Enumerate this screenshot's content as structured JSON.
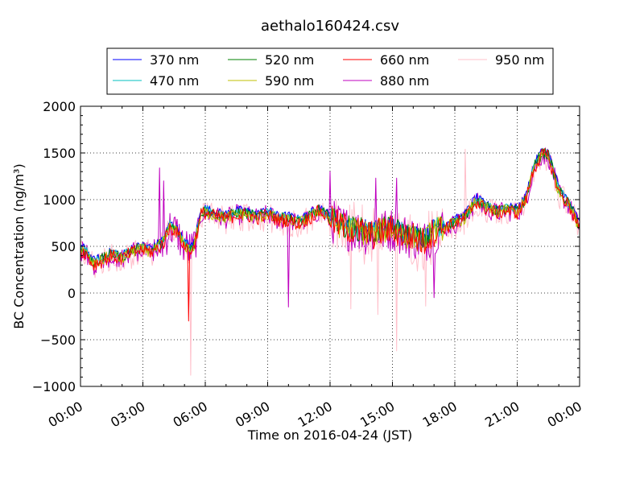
{
  "chart_data": {
    "type": "line",
    "title": "aethalo160424.csv",
    "xlabel": "Time on 2016-04-24 (JST)",
    "ylabel": "BC Concentration (ng/m³)",
    "ylim": [
      -1000,
      2000
    ],
    "yticks": [
      -1000,
      -500,
      0,
      500,
      1000,
      1500,
      2000
    ],
    "ytick_labels": [
      "−1000",
      "−500",
      "0",
      "500",
      "1000",
      "1500",
      "2000"
    ],
    "xlim_hours": [
      0,
      24
    ],
    "xticks_hours": [
      0,
      3,
      6,
      9,
      12,
      15,
      18,
      21,
      24
    ],
    "xtick_labels": [
      "00:00",
      "03:00",
      "06:00",
      "09:00",
      "12:00",
      "15:00",
      "18:00",
      "21:00",
      "00:00"
    ],
    "grid": true,
    "legend_position": "top-center",
    "series": [
      {
        "name": "370 nm",
        "color": "#0000ff"
      },
      {
        "name": "470 nm",
        "color": "#00bfbf"
      },
      {
        "name": "520 nm",
        "color": "#008000"
      },
      {
        "name": "590 nm",
        "color": "#bfbf00"
      },
      {
        "name": "660 nm",
        "color": "#ff0000"
      },
      {
        "name": "880 nm",
        "color": "#bf00bf"
      },
      {
        "name": "950 nm",
        "color": "#ffc0cb"
      }
    ],
    "profile": [
      [
        0.0,
        480
      ],
      [
        0.3,
        430
      ],
      [
        0.6,
        320
      ],
      [
        1.0,
        360
      ],
      [
        1.5,
        420
      ],
      [
        2.0,
        380
      ],
      [
        2.5,
        460
      ],
      [
        3.0,
        480
      ],
      [
        3.5,
        460
      ],
      [
        4.0,
        560
      ],
      [
        4.3,
        720
      ],
      [
        4.6,
        680
      ],
      [
        5.0,
        520
      ],
      [
        5.4,
        470
      ],
      [
        5.8,
        860
      ],
      [
        6.0,
        880
      ],
      [
        6.5,
        840
      ],
      [
        7.0,
        820
      ],
      [
        7.5,
        860
      ],
      [
        8.0,
        850
      ],
      [
        8.5,
        820
      ],
      [
        9.0,
        860
      ],
      [
        9.5,
        800
      ],
      [
        10.0,
        800
      ],
      [
        10.5,
        760
      ],
      [
        11.0,
        820
      ],
      [
        11.5,
        900
      ],
      [
        12.0,
        800
      ],
      [
        12.5,
        740
      ],
      [
        13.0,
        700
      ],
      [
        13.5,
        680
      ],
      [
        14.0,
        640
      ],
      [
        14.5,
        680
      ],
      [
        15.0,
        700
      ],
      [
        15.5,
        640
      ],
      [
        16.0,
        620
      ],
      [
        16.5,
        560
      ],
      [
        17.0,
        680
      ],
      [
        17.5,
        720
      ],
      [
        18.0,
        760
      ],
      [
        18.5,
        820
      ],
      [
        19.0,
        1000
      ],
      [
        19.5,
        920
      ],
      [
        20.0,
        880
      ],
      [
        20.5,
        900
      ],
      [
        21.0,
        880
      ],
      [
        21.4,
        1000
      ],
      [
        21.8,
        1350
      ],
      [
        22.2,
        1500
      ],
      [
        22.5,
        1480
      ],
      [
        23.0,
        1100
      ],
      [
        23.5,
        950
      ],
      [
        24.0,
        720
      ]
    ],
    "spikes": [
      {
        "series": 6,
        "hour": 5.3,
        "value": -880
      },
      {
        "series": 6,
        "hour": 15.2,
        "value": -620
      },
      {
        "series": 6,
        "hour": 14.3,
        "value": -230
      },
      {
        "series": 6,
        "hour": 13.0,
        "value": -170
      },
      {
        "series": 6,
        "hour": 16.6,
        "value": -140
      },
      {
        "series": 6,
        "hour": 18.5,
        "value": 1540
      },
      {
        "series": 5,
        "hour": 3.8,
        "value": 1340
      },
      {
        "series": 5,
        "hour": 4.0,
        "value": 1200
      },
      {
        "series": 5,
        "hour": 10.0,
        "value": -150
      },
      {
        "series": 5,
        "hour": 12.0,
        "value": 1300
      },
      {
        "series": 5,
        "hour": 14.2,
        "value": 1230
      },
      {
        "series": 5,
        "hour": 15.2,
        "value": 1230
      },
      {
        "series": 5,
        "hour": 17.0,
        "value": -50
      },
      {
        "series": 4,
        "hour": 5.2,
        "value": -300
      }
    ]
  }
}
